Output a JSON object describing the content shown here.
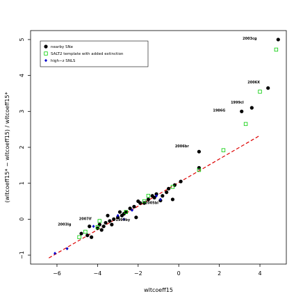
{
  "chart_data": {
    "type": "scatter",
    "xlabel": "wltcoeff15",
    "ylabel": "(wltcoeff15* − wltcoeff15) / wltcoeff15*",
    "xlim": [
      -7.3,
      5.3
    ],
    "ylim": [
      -1.25,
      5.25
    ],
    "x_ticks": [
      -6,
      -4,
      -2,
      0,
      2,
      4
    ],
    "y_ticks": [
      -1,
      0,
      1,
      2,
      3,
      4,
      5
    ],
    "grid": false,
    "legend_position": "top-left",
    "legend": [
      {
        "label": "nearby SNe",
        "marker": "filled-circle",
        "color": "#000000"
      },
      {
        "label": "SALT2 template with added extinction",
        "marker": "open-square",
        "color": "#00cc00"
      },
      {
        "label": "high−z SNLS",
        "marker": "filled-diamond",
        "color": "#0000cc"
      }
    ],
    "fit_line": {
      "x": [
        -6.4,
        4.0
      ],
      "y": [
        -1.08,
        2.33
      ],
      "color": "#dd0000",
      "style": "dashed"
    },
    "series": [
      {
        "name": "nearby SNe",
        "color": "#000000",
        "points": [
          [
            4.9,
            5.0
          ],
          [
            4.4,
            3.65
          ],
          [
            3.6,
            3.1
          ],
          [
            3.1,
            3.0
          ],
          [
            1.0,
            1.88
          ],
          [
            1.0,
            1.43
          ],
          [
            0.1,
            1.05
          ],
          [
            -0.2,
            0.95
          ],
          [
            -0.5,
            0.85
          ],
          [
            -0.6,
            0.75
          ],
          [
            -0.3,
            0.55
          ],
          [
            -0.8,
            0.65
          ],
          [
            -0.9,
            0.52
          ],
          [
            -1.1,
            0.7
          ],
          [
            -1.3,
            0.65
          ],
          [
            -1.5,
            0.55
          ],
          [
            -1.9,
            0.45
          ],
          [
            -2.0,
            0.5
          ],
          [
            -2.2,
            0.35
          ],
          [
            -2.4,
            0.3
          ],
          [
            -2.6,
            0.2
          ],
          [
            -2.1,
            0.05
          ],
          [
            -2.8,
            0.1
          ],
          [
            -2.9,
            0.2
          ],
          [
            -3.0,
            0.05
          ],
          [
            -3.2,
            0.0
          ],
          [
            -3.4,
            -0.05
          ],
          [
            -3.5,
            0.1
          ],
          [
            -3.7,
            -0.2
          ],
          [
            -3.9,
            -0.15
          ],
          [
            -4.0,
            -0.25
          ],
          [
            -3.8,
            -0.3
          ],
          [
            -3.6,
            -0.1
          ],
          [
            -4.4,
            -0.2
          ],
          [
            -4.8,
            -0.4
          ],
          [
            -4.5,
            -0.45
          ],
          [
            -4.3,
            -0.5
          ],
          [
            -3.3,
            -0.15
          ],
          [
            -2.7,
            0.15
          ],
          [
            -1.7,
            0.45
          ],
          [
            -1.2,
            0.6
          ]
        ]
      },
      {
        "name": "SALT2 template with added extinction",
        "color": "#00cc00",
        "points": [
          [
            4.8,
            4.72
          ],
          [
            4.0,
            3.55
          ],
          [
            3.3,
            2.65
          ],
          [
            2.2,
            1.92
          ],
          [
            1.0,
            1.37
          ],
          [
            -0.3,
            0.9
          ],
          [
            -1.5,
            0.65
          ],
          [
            -1.7,
            0.5
          ],
          [
            -2.6,
            0.2
          ],
          [
            -3.9,
            -0.05
          ],
          [
            -4.0,
            -0.22
          ],
          [
            -4.9,
            -0.5
          ],
          [
            -4.6,
            -0.35
          ]
        ]
      },
      {
        "name": "high−z SNLS",
        "color": "#0000cc",
        "points": [
          [
            -6.1,
            -0.95
          ],
          [
            -5.5,
            -0.82
          ],
          [
            -1.1,
            0.65
          ],
          [
            -2.3,
            0.25
          ],
          [
            -3.0,
            0.1
          ],
          [
            -4.2,
            -0.2
          ],
          [
            -0.9,
            0.55
          ],
          [
            -2.7,
            0.0
          ]
        ]
      }
    ],
    "annotations": [
      {
        "text": "2003cg",
        "x": 3.85,
        "y": 5.0
      },
      {
        "text": "2006X",
        "x": 4.0,
        "y": 3.78
      },
      {
        "text": "1999cl",
        "x": 3.2,
        "y": 3.22
      },
      {
        "text": "1986G",
        "x": 2.3,
        "y": 3.0
      },
      {
        "text": "2006br",
        "x": 0.5,
        "y": 2.0
      },
      {
        "text": "2005bl",
        "x": -1.0,
        "y": 0.42
      },
      {
        "text": "1999by",
        "x": -2.4,
        "y": -0.05
      },
      {
        "text": "2007if",
        "x": -4.3,
        "y": -0.02
      },
      {
        "text": "2003lg",
        "x": -5.3,
        "y": -0.18
      }
    ]
  }
}
